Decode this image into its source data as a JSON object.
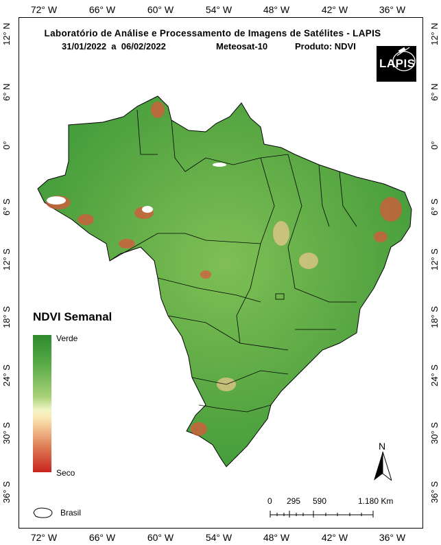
{
  "title": {
    "line1": "Laboratório de Análise e Processamento de Imagens de Satélites - LAPIS",
    "line2_dates": "31/01/2022  a  06/02/2022",
    "line2_satellite": "Meteosat-10",
    "line2_product": "Produto: NDVI"
  },
  "logo_text": "LAPIS",
  "longitude_labels": [
    "72° W",
    "66° W",
    "60° W",
    "54° W",
    "48° W",
    "42° W",
    "36° W"
  ],
  "latitude_labels": [
    "12° N",
    "6° N",
    "0°",
    "6° S",
    "12° S",
    "18° S",
    "24° S",
    "30° S",
    "36° S"
  ],
  "legend": {
    "title": "NDVI Semanal",
    "high_label": "Verde",
    "low_label": "Seco",
    "boundary_label": "Brasil",
    "colors": [
      "#2e8b2e",
      "#a9d27a",
      "#f3f5c6",
      "#f0b888",
      "#c8241e"
    ]
  },
  "scale": {
    "labels": [
      "0",
      "295",
      "590",
      "1.180 Km"
    ]
  },
  "north_label": "N"
}
